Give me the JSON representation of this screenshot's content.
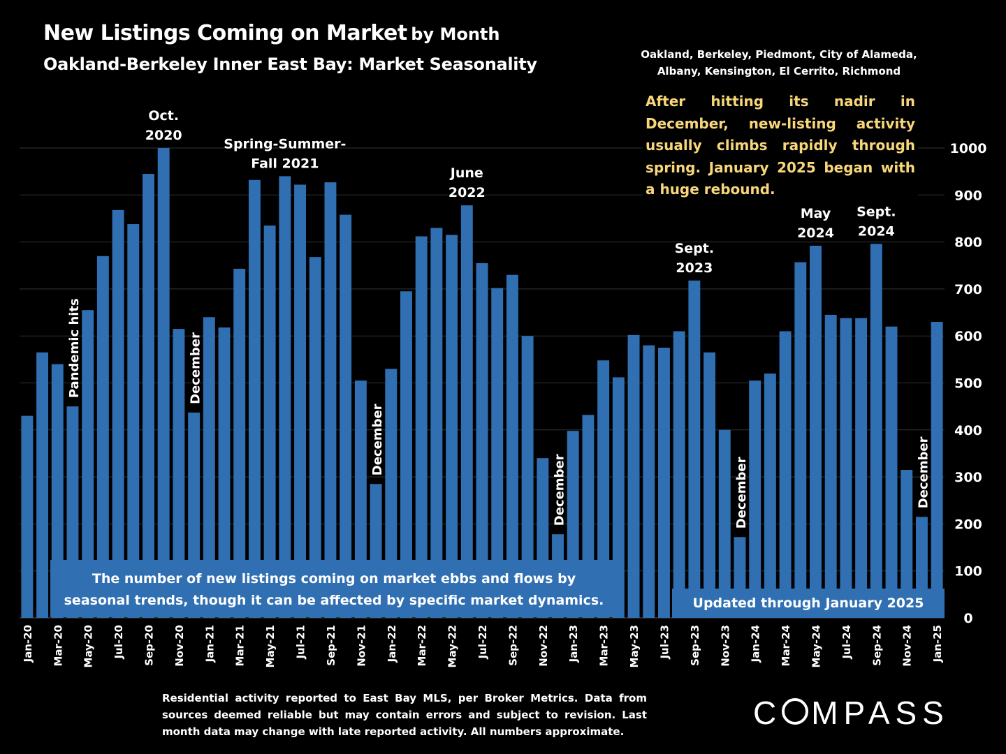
{
  "header": {
    "title": "New Listings Coming on Market",
    "title_suffix": "by Month",
    "subtitle": "Oakland-Berkeley Inner East Bay: Market Seasonality",
    "regions_line1": "Oakland, Berkeley, Piedmont, City of Alameda,",
    "regions_line2": "Albany, Kensington, El Cerrito, Richmond"
  },
  "notes": {
    "yellow": "After hitting its nadir in December, new-listing activity usually climbs rapidly through spring. January 2025 began with a huge rebound.",
    "blue_line1": "The number of new listings coming on market ebbs and flows by",
    "blue_line2": "seasonal trends, though it can be affected by specific market dynamics.",
    "updated": "Updated through January 2025"
  },
  "footnote": "Residential activity reported to East Bay MLS, per Broker Metrics. Data from sources deemed reliable but may contain errors and subject to revision. Last month data may change with late reported activity. All numbers approximate.",
  "logo": {
    "pre": "C",
    "post": "MPASS"
  },
  "colors": {
    "bar": "#2f6fb2",
    "background": "#000000",
    "highlight_text": "#f8d77a",
    "gridline": "#333333"
  },
  "chart_data": {
    "type": "bar",
    "categories": [
      "Jan-20",
      "Feb-20",
      "Mar-20",
      "Apr-20",
      "May-20",
      "Jun-20",
      "Jul-20",
      "Aug-20",
      "Sep-20",
      "Oct-20",
      "Nov-20",
      "Dec-20",
      "Jan-21",
      "Feb-21",
      "Mar-21",
      "Apr-21",
      "May-21",
      "Jun-21",
      "Jul-21",
      "Aug-21",
      "Sep-21",
      "Oct-21",
      "Nov-21",
      "Dec-21",
      "Jan-22",
      "Feb-22",
      "Mar-22",
      "Apr-22",
      "May-22",
      "Jun-22",
      "Jul-22",
      "Aug-22",
      "Sep-22",
      "Oct-22",
      "Nov-22",
      "Dec-22",
      "Jan-23",
      "Feb-23",
      "Mar-23",
      "Apr-23",
      "May-23",
      "Jun-23",
      "Jul-23",
      "Aug-23",
      "Sep-23",
      "Oct-23",
      "Nov-23",
      "Dec-23",
      "Jan-24",
      "Feb-24",
      "Mar-24",
      "Apr-24",
      "May-24",
      "Jun-24",
      "Jul-24",
      "Aug-24",
      "Sep-24",
      "Oct-24",
      "Nov-24",
      "Dec-24",
      "Jan-25"
    ],
    "values": [
      430,
      565,
      540,
      450,
      655,
      770,
      868,
      838,
      945,
      1000,
      615,
      437,
      640,
      618,
      743,
      932,
      835,
      940,
      922,
      768,
      927,
      858,
      505,
      285,
      530,
      695,
      812,
      830,
      815,
      878,
      755,
      702,
      730,
      600,
      340,
      178,
      398,
      432,
      548,
      512,
      602,
      580,
      575,
      610,
      718,
      565,
      400,
      172,
      505,
      520,
      610,
      757,
      792,
      645,
      638,
      638,
      796,
      620,
      315,
      215,
      630
    ],
    "xtick_labels": [
      "Jan-20",
      "Mar-20",
      "May-20",
      "Jul-20",
      "Sep-20",
      "Nov-20",
      "Jan-21",
      "Mar-21",
      "May-21",
      "Jul-21",
      "Sep-21",
      "Nov-21",
      "Jan-22",
      "Mar-22",
      "May-22",
      "Jul-22",
      "Sep-22",
      "Nov-22",
      "Jan-23",
      "Mar-23",
      "May-23",
      "Jul-23",
      "Sep-23",
      "Nov-23",
      "Jan-24",
      "Mar-24",
      "May-24",
      "Jul-24",
      "Sep-24",
      "Nov-24",
      "Jan-25"
    ],
    "yticks": [
      0,
      100,
      200,
      300,
      400,
      500,
      600,
      700,
      800,
      900,
      1000
    ],
    "ylim": [
      0,
      1000
    ],
    "y_axis_side": "right",
    "grid": true,
    "annotations": [
      {
        "text": [
          "Oct.",
          "2020"
        ],
        "index": 9,
        "vertical": false
      },
      {
        "text": [
          "Spring-Summer-",
          "Fall  2021"
        ],
        "index": 17,
        "vertical": false
      },
      {
        "text": [
          "June",
          "2022"
        ],
        "index": 29,
        "vertical": false
      },
      {
        "text": [
          "Sept.",
          "2023"
        ],
        "index": 44,
        "vertical": false
      },
      {
        "text": [
          "May",
          "2024"
        ],
        "index": 52,
        "vertical": false
      },
      {
        "text": [
          "Sept.",
          "2024"
        ],
        "index": 56,
        "vertical": false
      },
      {
        "text": [
          "Pandemic hits"
        ],
        "index": 3,
        "vertical": true
      },
      {
        "text": [
          "December"
        ],
        "index": 11,
        "vertical": true
      },
      {
        "text": [
          "December"
        ],
        "index": 23,
        "vertical": true
      },
      {
        "text": [
          "December"
        ],
        "index": 35,
        "vertical": true
      },
      {
        "text": [
          "December"
        ],
        "index": 47,
        "vertical": true
      },
      {
        "text": [
          "December"
        ],
        "index": 59,
        "vertical": true
      }
    ]
  }
}
